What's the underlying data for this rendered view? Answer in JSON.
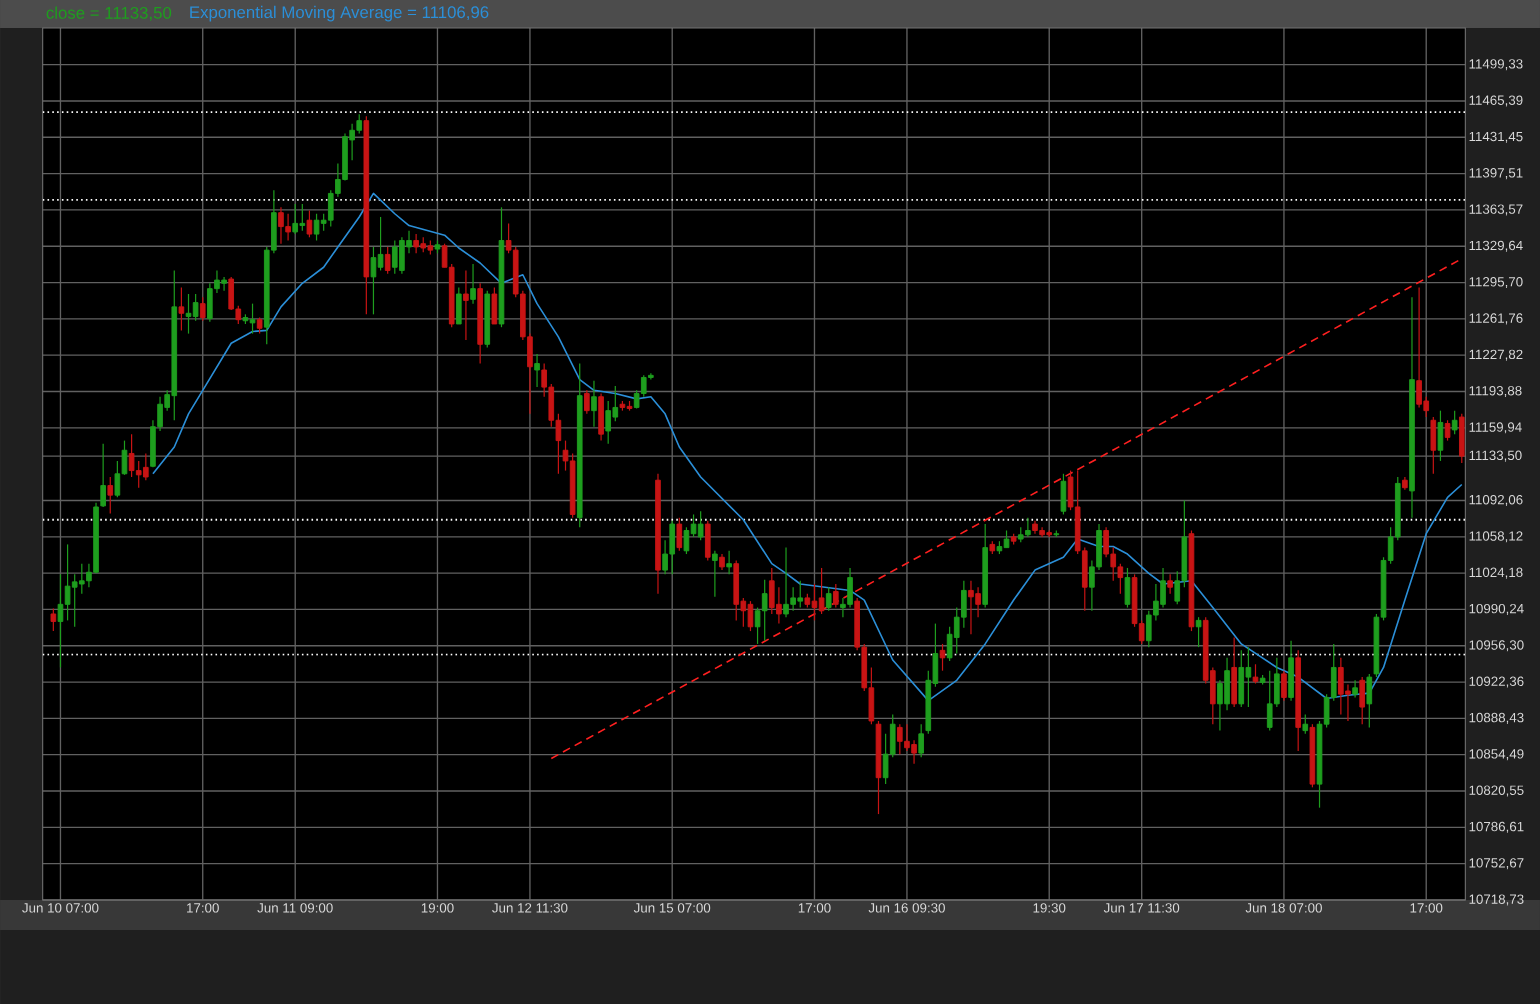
{
  "chart_data": {
    "type": "candlestick",
    "categories": [
      null,
      "Jun 10 07:00",
      null,
      null,
      null,
      null,
      null,
      null,
      null,
      null,
      null,
      null,
      null,
      null,
      null,
      null,
      null,
      null,
      null,
      null,
      null,
      "17:00",
      null,
      null,
      null,
      null,
      null,
      null,
      null,
      null,
      null,
      null,
      null,
      null,
      "Jun 11 09:00",
      null,
      null,
      null,
      null,
      null,
      null,
      null,
      null,
      null,
      null,
      null,
      null,
      null,
      null,
      null,
      null,
      null,
      null,
      null,
      "19:00",
      null,
      null,
      null,
      null,
      null,
      null,
      null,
      null,
      null,
      null,
      null,
      null,
      "Jun 12 11:30",
      null,
      null,
      null,
      null,
      null,
      null,
      null,
      null,
      null,
      null,
      null,
      null,
      null,
      null,
      null,
      null,
      null,
      null,
      null,
      "Jun 15 07:00",
      null,
      null,
      null,
      null,
      null,
      null,
      null,
      null,
      null,
      null,
      null,
      null,
      null,
      null,
      null,
      null,
      null,
      null,
      null,
      "17:00",
      null,
      null,
      null,
      null,
      null,
      null,
      null,
      null,
      null,
      null,
      null,
      null,
      "Jun 16 09:30",
      null,
      null,
      null,
      null,
      null,
      null,
      null,
      null,
      null,
      null,
      null,
      null,
      null,
      null,
      null,
      null,
      null,
      null,
      null,
      "19:30",
      null,
      null,
      null,
      null,
      null,
      null,
      null,
      null,
      null,
      null,
      null,
      null,
      "Jun 17 11:30",
      null,
      null,
      null,
      null,
      null,
      null,
      null,
      null,
      null,
      null,
      null,
      null,
      null,
      null,
      null,
      null,
      null,
      null,
      null,
      "Jun 18 07:00",
      null,
      null,
      null,
      null,
      null,
      null,
      null,
      null,
      null,
      null,
      null,
      null,
      null,
      null,
      null,
      null,
      null,
      null,
      null,
      "17:00",
      null,
      null,
      null,
      null,
      null
    ],
    "ylim": [
      10718.73,
      11533.6
    ],
    "yticks": [
      {
        "value": 11499.33,
        "label": "11499,33"
      },
      {
        "value": 11465.39,
        "label": "11465,39"
      },
      {
        "value": 11431.45,
        "label": "11431,45"
      },
      {
        "value": 11397.51,
        "label": "11397,51"
      },
      {
        "value": 11363.57,
        "label": "11363,57"
      },
      {
        "value": 11329.64,
        "label": "11329,64"
      },
      {
        "value": 11295.7,
        "label": "11295,70"
      },
      {
        "value": 11261.76,
        "label": "11261,76"
      },
      {
        "value": 11227.82,
        "label": "11227,82"
      },
      {
        "value": 11193.88,
        "label": "11193,88"
      },
      {
        "value": 11159.94,
        "label": "11159,94"
      },
      {
        "value": 11133.5,
        "label": "11133,50"
      },
      {
        "value": 11092.06,
        "label": "11092,06"
      },
      {
        "value": 11058.12,
        "label": "11058,12"
      },
      {
        "value": 11024.18,
        "label": "11024,18"
      },
      {
        "value": 10990.24,
        "label": "10990,24"
      },
      {
        "value": 10956.3,
        "label": "10956,30"
      },
      {
        "value": 10922.36,
        "label": "10922,36"
      },
      {
        "value": 10888.43,
        "label": "10888,43"
      },
      {
        "value": 10854.49,
        "label": "10854,49"
      },
      {
        "value": 10820.55,
        "label": "10820,55"
      },
      {
        "value": 10786.61,
        "label": "10786,61"
      },
      {
        "value": 10752.67,
        "label": "10752,67"
      },
      {
        "value": 10718.73,
        "label": "10718,73"
      }
    ],
    "grid": true,
    "legend": "top left",
    "ref_lines": [
      {
        "axis": "y",
        "value": 11455,
        "color": "#ffffff",
        "line_style": "dotted"
      },
      {
        "axis": "y",
        "value": 11373,
        "color": "#ffffff",
        "line_style": "dotted"
      },
      {
        "axis": "y",
        "value": 11074,
        "color": "#ffffff",
        "line_style": "dotted"
      },
      {
        "axis": "y",
        "value": 10948,
        "color": "#ffffff",
        "line_style": "dotted"
      }
    ],
    "series": [
      {
        "type": "line",
        "name": "Exponential Moving Average = 11106,96",
        "color": "#2b8fd8",
        "values": [
          null,
          null,
          null,
          null,
          null,
          null,
          null,
          null,
          null,
          null,
          null,
          null,
          null,
          null,
          11117,
          null,
          null,
          11142,
          null,
          11173,
          null,
          11195,
          null,
          null,
          null,
          11239,
          null,
          null,
          11250,
          null,
          11251,
          null,
          11273,
          null,
          null,
          11295,
          null,
          null,
          11310,
          null,
          11329,
          null,
          null,
          11357,
          null,
          11379,
          null,
          null,
          11360,
          null,
          11349,
          null,
          null,
          null,
          null,
          11340,
          null,
          11328,
          null,
          null,
          11314,
          null,
          null,
          11295,
          null,
          null,
          11303,
          null,
          11276,
          null,
          null,
          11245,
          null,
          null,
          11205,
          null,
          11195,
          null,
          null,
          11192,
          null,
          null,
          11187,
          null,
          11189,
          null,
          11173,
          null,
          11142,
          null,
          null,
          11114,
          null,
          null,
          null,
          null,
          null,
          11074,
          null,
          null,
          null,
          11033,
          null,
          11024,
          null,
          11014,
          null,
          null,
          null,
          null,
          null,
          null,
          11008,
          null,
          10999,
          null,
          null,
          null,
          10943,
          null,
          null,
          null,
          null,
          10905,
          null,
          null,
          null,
          10924,
          null,
          null,
          null,
          10958,
          null,
          null,
          null,
          10999,
          null,
          null,
          11027,
          null,
          null,
          null,
          11039,
          null,
          11056,
          null,
          null,
          11049,
          null,
          11049,
          null,
          11042,
          null,
          null,
          11024,
          null,
          11014,
          null,
          null,
          null,
          11017,
          null,
          null,
          10992,
          null,
          null,
          null,
          10958,
          null,
          null,
          null,
          null,
          10936,
          null,
          null,
          10927,
          null,
          null,
          null,
          10907,
          null,
          null,
          10910,
          null,
          null,
          10912,
          null,
          10936,
          null,
          null,
          10999,
          null,
          null,
          11061,
          null,
          null,
          11095,
          null,
          11107
        ]
      },
      {
        "type": "line",
        "color": "#ff2020",
        "line_style": "dashed",
        "values": [
          null,
          null,
          null,
          null,
          null,
          null,
          null,
          null,
          null,
          null,
          null,
          null,
          null,
          null,
          null,
          null,
          null,
          null,
          null,
          null,
          null,
          null,
          null,
          null,
          null,
          null,
          null,
          null,
          null,
          null,
          null,
          null,
          null,
          null,
          null,
          null,
          null,
          null,
          null,
          null,
          null,
          null,
          null,
          null,
          null,
          null,
          null,
          null,
          null,
          null,
          null,
          null,
          null,
          null,
          null,
          null,
          null,
          null,
          null,
          null,
          null,
          null,
          null,
          null,
          null,
          null,
          null,
          null,
          null,
          null,
          10851,
          null,
          null,
          null,
          null,
          null,
          null,
          null,
          null,
          null,
          null,
          null,
          null,
          null,
          null,
          null,
          null,
          null,
          null,
          null,
          null,
          null,
          null,
          null,
          null,
          null,
          null,
          null,
          null,
          null,
          null,
          null,
          null,
          null,
          null,
          null,
          null,
          null,
          null,
          null,
          null,
          null,
          null,
          null,
          null,
          null,
          null,
          null,
          null,
          null,
          null,
          null,
          null,
          null,
          null,
          null,
          null,
          null,
          null,
          null,
          null,
          null,
          null,
          null,
          null,
          null,
          null,
          null,
          null,
          null,
          null,
          null,
          null,
          null,
          null,
          null,
          null,
          null,
          null,
          null,
          null,
          null,
          null,
          null,
          null,
          null,
          null,
          null,
          null,
          null,
          null,
          null,
          null,
          null,
          null,
          null,
          null,
          null,
          null,
          null,
          null,
          null,
          null,
          null,
          null,
          null,
          null,
          null,
          null,
          null,
          null,
          null,
          null,
          null,
          null,
          null,
          null,
          null,
          null,
          null,
          null,
          null,
          null,
          null,
          null,
          null,
          null,
          null,
          11318
        ]
      },
      {
        "name": "close = 11133,50",
        "color": "#1e9e1e",
        "ohlc": [
          [
            10986,
            10991,
            10970,
            10979
          ],
          [
            10979,
            11023,
            10936,
            10995
          ],
          [
            10995,
            11051,
            10980,
            11012
          ],
          [
            11011,
            11023,
            10974,
            11016
          ],
          [
            11014,
            11033,
            11005,
            11017
          ],
          [
            11017,
            11033,
            11011,
            11025
          ],
          [
            11025,
            11090,
            11024,
            11086
          ],
          [
            11087,
            11145,
            11086,
            11106
          ],
          [
            11106,
            11114,
            11080,
            11097
          ],
          [
            11097,
            11129,
            11095,
            11117
          ],
          [
            11117,
            11148,
            11116,
            11139
          ],
          [
            11136,
            11154,
            11114,
            11120
          ],
          [
            11120,
            11129,
            11104,
            11116
          ],
          [
            11123,
            11136,
            11111,
            11114
          ],
          [
            11124,
            11167,
            11123,
            11161
          ],
          [
            11161,
            11189,
            11157,
            11182
          ],
          [
            11179,
            11195,
            11176,
            11191
          ],
          [
            11190,
            11307,
            11167,
            11273
          ],
          [
            11273,
            11291,
            11251,
            11267
          ],
          [
            11264,
            11285,
            11248,
            11267
          ],
          [
            11264,
            11285,
            11260,
            11277
          ],
          [
            11276,
            11282,
            11260,
            11263
          ],
          [
            11262,
            11295,
            11259,
            11290
          ],
          [
            11290,
            11307,
            11286,
            11298
          ],
          [
            11295,
            11301,
            11288,
            11298
          ],
          [
            11299,
            11301,
            11270,
            11271
          ],
          [
            11271,
            11274,
            11257,
            11261
          ],
          [
            11260,
            11266,
            11257,
            11263
          ],
          [
            11258,
            11276,
            11248,
            11261
          ],
          [
            11261,
            11263,
            11248,
            11253
          ],
          [
            11254,
            11329,
            11238,
            11326
          ],
          [
            11326,
            11382,
            11323,
            11361
          ],
          [
            11361,
            11366,
            11332,
            11348
          ],
          [
            11348,
            11360,
            11335,
            11343
          ],
          [
            11343,
            11369,
            11341,
            11351
          ],
          [
            11349,
            11369,
            11344,
            11351
          ],
          [
            11354,
            11363,
            11338,
            11341
          ],
          [
            11341,
            11360,
            11335,
            11354
          ],
          [
            11351,
            11360,
            11344,
            11354
          ],
          [
            11354,
            11382,
            11348,
            11379
          ],
          [
            11379,
            11407,
            11376,
            11392
          ],
          [
            11392,
            11435,
            11391,
            11432
          ],
          [
            11429,
            11444,
            11410,
            11438
          ],
          [
            11438,
            11453,
            11435,
            11447
          ],
          [
            11447,
            11451,
            11266,
            11301
          ],
          [
            11301,
            11329,
            11266,
            11319
          ],
          [
            11310,
            11357,
            11307,
            11322
          ],
          [
            11322,
            11329,
            11304,
            11307
          ],
          [
            11310,
            11335,
            11304,
            11329
          ],
          [
            11307,
            11338,
            11304,
            11335
          ],
          [
            11329,
            11344,
            11323,
            11335
          ],
          [
            11335,
            11341,
            11323,
            11329
          ],
          [
            11332,
            11338,
            11324,
            11328
          ],
          [
            11330,
            11335,
            11322,
            11326
          ],
          [
            11327,
            11335,
            11323,
            11331
          ],
          [
            11330,
            11332,
            11310,
            11310
          ],
          [
            11310,
            11313,
            11254,
            11257
          ],
          [
            11257,
            11291,
            11257,
            11285
          ],
          [
            11285,
            11307,
            11242,
            11279
          ],
          [
            11280,
            11313,
            11276,
            11290
          ],
          [
            11290,
            11295,
            11220,
            11238
          ],
          [
            11238,
            11288,
            11235,
            11285
          ],
          [
            11285,
            11291,
            11257,
            11257
          ],
          [
            11257,
            11366,
            11254,
            11335
          ],
          [
            11335,
            11351,
            11323,
            11326
          ],
          [
            11326,
            11329,
            11282,
            11285
          ],
          [
            11285,
            11288,
            11242,
            11245
          ],
          [
            11245,
            11248,
            11173,
            11217
          ],
          [
            11214,
            11229,
            11198,
            11220
          ],
          [
            11214,
            11220,
            11189,
            11198
          ],
          [
            11198,
            11201,
            11161,
            11167
          ],
          [
            11167,
            11173,
            11117,
            11148
          ],
          [
            11139,
            11148,
            11120,
            11129
          ],
          [
            11129,
            11136,
            11076,
            11079
          ],
          [
            11076,
            11220,
            11067,
            11190
          ],
          [
            11192,
            11195,
            11173,
            11176
          ],
          [
            11176,
            11204,
            11161,
            11189
          ],
          [
            11189,
            11192,
            11148,
            11154
          ],
          [
            11157,
            11185,
            11145,
            11176
          ],
          [
            11170,
            11199,
            11166,
            11179
          ],
          [
            11182,
            11185,
            11176,
            11179
          ],
          [
            11180,
            11185,
            11176,
            11178
          ],
          [
            11179,
            11195,
            11178,
            11192
          ],
          [
            11192,
            11209,
            11189,
            11207
          ],
          [
            11207,
            11211,
            11205,
            11209
          ],
          [
            11111,
            11117,
            11005,
            11027
          ],
          [
            11027,
            11055,
            11023,
            11042
          ],
          [
            11042,
            11073,
            11023,
            11070
          ],
          [
            11070,
            11076,
            11045,
            11048
          ],
          [
            11045,
            11067,
            11042,
            11064
          ],
          [
            11061,
            11079,
            11058,
            11070
          ],
          [
            11058,
            11082,
            11055,
            11070
          ],
          [
            11070,
            11073,
            11036,
            11039
          ],
          [
            11036,
            11045,
            11002,
            11042
          ],
          [
            11039,
            11042,
            11027,
            11030
          ],
          [
            11030,
            11045,
            11023,
            11033
          ],
          [
            11033,
            11036,
            10980,
            10995
          ],
          [
            10998,
            11001,
            10974,
            10989
          ],
          [
            10995,
            10998,
            10970,
            10974
          ],
          [
            10974,
            10992,
            10958,
            10989
          ],
          [
            10989,
            11018,
            10961,
            11005
          ],
          [
            11017,
            11029,
            10986,
            10992
          ],
          [
            10995,
            11011,
            10977,
            10986
          ],
          [
            10986,
            11048,
            10983,
            10995
          ],
          [
            10995,
            11011,
            10989,
            11001
          ],
          [
            10998,
            11017,
            10992,
            11001
          ],
          [
            11001,
            11005,
            10992,
            10995
          ],
          [
            10998,
            11014,
            10980,
            10992
          ],
          [
            11001,
            11029,
            10986,
            10989
          ],
          [
            10992,
            11011,
            10989,
            11005
          ],
          [
            11007,
            11014,
            10992,
            10995
          ],
          [
            10992,
            11001,
            10983,
            10995
          ],
          [
            10995,
            11029,
            10992,
            11020
          ],
          [
            10998,
            11001,
            10952,
            10955
          ],
          [
            10955,
            10958,
            10914,
            10917
          ],
          [
            10917,
            10936,
            10883,
            10886
          ],
          [
            10883,
            10886,
            10799,
            10833
          ],
          [
            10833,
            10874,
            10827,
            10855
          ],
          [
            10855,
            10892,
            10852,
            10883
          ],
          [
            10880,
            10883,
            10855,
            10867
          ],
          [
            10867,
            10883,
            10858,
            10861
          ],
          [
            10864,
            10868,
            10846,
            10856
          ],
          [
            10856,
            10883,
            10852,
            10874
          ],
          [
            10877,
            10933,
            10874,
            10924
          ],
          [
            10921,
            10977,
            10918,
            10949
          ],
          [
            10952,
            10958,
            10933,
            10945
          ],
          [
            10945,
            10974,
            10942,
            10967
          ],
          [
            10964,
            10992,
            10949,
            10983
          ],
          [
            10983,
            11017,
            10973,
            11008
          ],
          [
            11008,
            11017,
            10967,
            11002
          ],
          [
            11005,
            11011,
            10983,
            10995
          ],
          [
            10995,
            11070,
            10992,
            11048
          ],
          [
            11051,
            11054,
            11042,
            11045
          ],
          [
            11045,
            11054,
            11042,
            11049
          ],
          [
            11048,
            11064,
            11048,
            11056
          ],
          [
            11058,
            11061,
            11051,
            11054
          ],
          [
            11056,
            11067,
            11053,
            11060
          ],
          [
            11060,
            11076,
            11058,
            11064
          ],
          [
            11070,
            11073,
            11061,
            11064
          ],
          [
            11064,
            11067,
            11058,
            11060
          ],
          [
            11062,
            11064,
            11058,
            11060
          ],
          [
            11060,
            11064,
            11058,
            11061
          ],
          [
            11082,
            11117,
            11079,
            11110
          ],
          [
            11114,
            11120,
            11083,
            11086
          ],
          [
            11086,
            11120,
            11042,
            11045
          ],
          [
            11045,
            11048,
            10989,
            11011
          ],
          [
            11011,
            11036,
            10989,
            11030
          ],
          [
            11030,
            11070,
            11027,
            11064
          ],
          [
            11064,
            11067,
            11039,
            11042
          ],
          [
            11042,
            11048,
            11017,
            11030
          ],
          [
            11030,
            11033,
            11005,
            11020
          ],
          [
            10995,
            11029,
            10992,
            11020
          ],
          [
            11020,
            11023,
            10974,
            10977
          ],
          [
            10977,
            10980,
            10958,
            10961
          ],
          [
            10961,
            10989,
            10955,
            10985
          ],
          [
            10985,
            11014,
            10980,
            10998
          ],
          [
            10995,
            11029,
            10992,
            11017
          ],
          [
            11017,
            11023,
            11005,
            11011
          ],
          [
            10998,
            11026,
            10995,
            11017
          ],
          [
            11017,
            11092,
            11011,
            11058
          ],
          [
            11061,
            11064,
            10970,
            10974
          ],
          [
            10974,
            10983,
            10955,
            10980
          ],
          [
            10980,
            10983,
            10921,
            10924
          ],
          [
            10933,
            10936,
            10883,
            10902
          ],
          [
            10902,
            10924,
            10877,
            10921
          ],
          [
            10902,
            10945,
            10896,
            10933
          ],
          [
            10936,
            10964,
            10899,
            10902
          ],
          [
            10902,
            10952,
            10899,
            10936
          ],
          [
            10927,
            10955,
            10899,
            10936
          ],
          [
            10927,
            10939,
            10921,
            10923
          ],
          [
            10922,
            10929,
            10920,
            10926
          ],
          [
            10880,
            10933,
            10877,
            10902
          ],
          [
            10902,
            10945,
            10899,
            10930
          ],
          [
            10930,
            10933,
            10905,
            10908
          ],
          [
            10908,
            10961,
            10905,
            10945
          ],
          [
            10945,
            10952,
            10858,
            10880
          ],
          [
            10877,
            10892,
            10874,
            10883
          ],
          [
            10880,
            10883,
            10824,
            10827
          ],
          [
            10827,
            10886,
            10805,
            10883
          ],
          [
            10883,
            10911,
            10880,
            10908
          ],
          [
            10908,
            10958,
            10905,
            10936
          ],
          [
            10936,
            10945,
            10892,
            10911
          ],
          [
            10914,
            10920,
            10886,
            10911
          ],
          [
            10911,
            10924,
            10908,
            10917
          ],
          [
            10924,
            10927,
            10883,
            10899
          ],
          [
            10902,
            10930,
            10880,
            10927
          ],
          [
            10930,
            10986,
            10927,
            10983
          ],
          [
            10983,
            11039,
            10980,
            11036
          ],
          [
            11036,
            11067,
            11033,
            11058
          ],
          [
            11058,
            11114,
            11055,
            11108
          ],
          [
            11111,
            11114,
            11102,
            11104
          ],
          [
            11101,
            11282,
            11076,
            11205
          ],
          [
            11204,
            11291,
            11179,
            11182
          ],
          [
            11185,
            11189,
            11170,
            11176
          ],
          [
            11167,
            11170,
            11117,
            11139
          ],
          [
            11139,
            11176,
            11129,
            11165
          ],
          [
            11164,
            11167,
            11148,
            11151
          ],
          [
            11158,
            11176,
            11154,
            11167
          ],
          [
            11170,
            11173,
            11127,
            11133.5
          ]
        ],
        "colors": [
          "#c81414",
          "#1e9e1e",
          "#1e9e1e",
          "#1e9e1e",
          "#1e9e1e",
          "#1e9e1e",
          "#1e9e1e",
          "#1e9e1e",
          "#c81414",
          "#1e9e1e",
          "#1e9e1e",
          "#c81414",
          "#c81414",
          "#c81414",
          "#1e9e1e",
          "#1e9e1e",
          "#1e9e1e",
          "#1e9e1e",
          "#c81414",
          "#1e9e1e",
          "#1e9e1e",
          "#c81414",
          "#1e9e1e",
          "#1e9e1e",
          "#1e9e1e",
          "#c81414",
          "#c81414",
          "#1e9e1e",
          "#1e9e1e",
          "#c81414",
          "#1e9e1e",
          "#1e9e1e",
          "#c81414",
          "#c81414",
          "#1e9e1e",
          "#1e9e1e",
          "#c81414",
          "#1e9e1e",
          "#1e9e1e",
          "#1e9e1e",
          "#1e9e1e",
          "#1e9e1e",
          "#1e9e1e",
          "#1e9e1e",
          "#c81414",
          "#1e9e1e",
          "#1e9e1e",
          "#c81414",
          "#1e9e1e",
          "#1e9e1e",
          "#1e9e1e",
          "#c81414",
          "#c81414",
          "#c81414",
          "#1e9e1e",
          "#c81414",
          "#c81414",
          "#1e9e1e",
          "#c81414",
          "#1e9e1e",
          "#c81414",
          "#1e9e1e",
          "#c81414",
          "#1e9e1e",
          "#c81414",
          "#c81414",
          "#c81414",
          "#c81414",
          "#1e9e1e",
          "#c81414",
          "#c81414",
          "#c81414",
          "#c81414",
          "#c81414",
          "#1e9e1e",
          "#c81414",
          "#1e9e1e",
          "#c81414",
          "#1e9e1e",
          "#1e9e1e",
          "#c81414",
          "#c81414",
          "#1e9e1e",
          "#1e9e1e",
          "#1e9e1e",
          "#c81414",
          "#1e9e1e",
          "#1e9e1e",
          "#c81414",
          "#1e9e1e",
          "#1e9e1e",
          "#1e9e1e",
          "#c81414",
          "#1e9e1e",
          "#c81414",
          "#1e9e1e",
          "#c81414",
          "#c81414",
          "#c81414",
          "#1e9e1e",
          "#1e9e1e",
          "#c81414",
          "#c81414",
          "#1e9e1e",
          "#1e9e1e",
          "#1e9e1e",
          "#c81414",
          "#c81414",
          "#c81414",
          "#1e9e1e",
          "#c81414",
          "#1e9e1e",
          "#1e9e1e",
          "#c81414",
          "#c81414",
          "#c81414",
          "#c81414",
          "#1e9e1e",
          "#1e9e1e",
          "#c81414",
          "#c81414",
          "#c81414",
          "#1e9e1e",
          "#1e9e1e",
          "#1e9e1e",
          "#c81414",
          "#1e9e1e",
          "#1e9e1e",
          "#1e9e1e",
          "#c81414",
          "#c81414",
          "#1e9e1e",
          "#c81414",
          "#1e9e1e",
          "#1e9e1e",
          "#c81414",
          "#1e9e1e",
          "#1e9e1e",
          "#c81414",
          "#c81414",
          "#c81414",
          "#1e9e1e",
          "#1e9e1e",
          "#c81414",
          "#c81414",
          "#c81414",
          "#1e9e1e",
          "#1e9e1e",
          "#c81414",
          "#c81414",
          "#c81414",
          "#1e9e1e",
          "#c81414",
          "#c81414",
          "#1e9e1e",
          "#1e9e1e",
          "#1e9e1e",
          "#c81414",
          "#1e9e1e",
          "#1e9e1e",
          "#c81414",
          "#1e9e1e",
          "#c81414",
          "#c81414",
          "#1e9e1e",
          "#1e9e1e",
          "#c81414",
          "#1e9e1e",
          "#1e9e1e",
          "#c81414",
          "#1e9e1e",
          "#1e9e1e",
          "#1e9e1e",
          "#c81414",
          "#1e9e1e",
          "#c81414",
          "#1e9e1e",
          "#c81414",
          "#1e9e1e",
          "#1e9e1e",
          "#1e9e1e",
          "#c81414",
          "#c81414",
          "#1e9e1e",
          "#c81414",
          "#1e9e1e",
          "#1e9e1e",
          "#1e9e1e",
          "#1e9e1e",
          "#1e9e1e",
          "#c81414",
          "#1e9e1e",
          "#c81414",
          "#c81414",
          "#c81414",
          "#1e9e1e",
          "#c81414",
          "#1e9e1e",
          "#c81414"
        ]
      }
    ]
  }
}
